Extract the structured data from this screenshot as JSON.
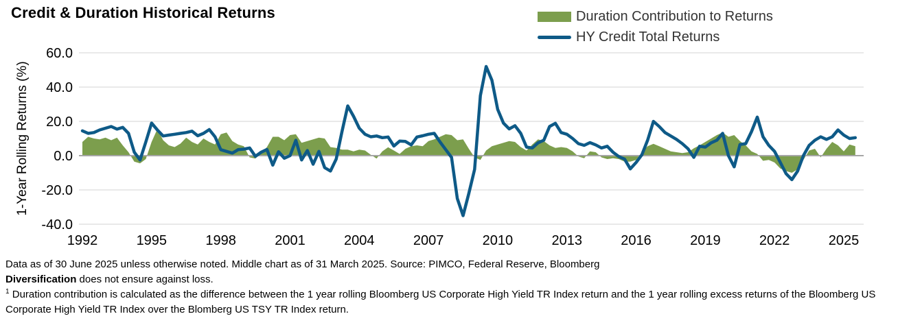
{
  "chart_data": {
    "type": "combo",
    "title": "Credit & Duration Historical Returns",
    "ylabel": "1-Year Rolling Returns (%)",
    "x_ticks": [
      1992,
      1995,
      1998,
      2001,
      2004,
      2007,
      2010,
      2013,
      2016,
      2019,
      2022,
      2025
    ],
    "y_ticks": [
      60,
      40,
      20,
      0,
      -20,
      -40
    ],
    "y_tick_labels": [
      "60.0",
      "40.0",
      "20.0",
      "0.0",
      "-20.0",
      "-40.0"
    ],
    "ylim": [
      -40,
      60
    ],
    "xlim": [
      1991.85,
      2025.9
    ],
    "grid": "horizontal",
    "legend_position": "top-right",
    "x_unit": "year (quarterly samples)",
    "x": [
      1992,
      1992.25,
      1992.5,
      1992.75,
      1993,
      1993.25,
      1993.5,
      1993.75,
      1994,
      1994.25,
      1994.5,
      1994.75,
      1995,
      1995.25,
      1995.5,
      1995.75,
      1996,
      1996.25,
      1996.5,
      1996.75,
      1997,
      1997.25,
      1997.5,
      1997.75,
      1998,
      1998.25,
      1998.5,
      1998.75,
      1999,
      1999.25,
      1999.5,
      1999.75,
      2000,
      2000.25,
      2000.5,
      2000.75,
      2001,
      2001.25,
      2001.5,
      2001.75,
      2002,
      2002.25,
      2002.5,
      2002.75,
      2003,
      2003.25,
      2003.5,
      2003.75,
      2004,
      2004.25,
      2004.5,
      2004.75,
      2005,
      2005.25,
      2005.5,
      2005.75,
      2006,
      2006.25,
      2006.5,
      2006.75,
      2007,
      2007.25,
      2007.5,
      2007.75,
      2008,
      2008.25,
      2008.5,
      2008.75,
      2009,
      2009.25,
      2009.5,
      2009.75,
      2010,
      2010.25,
      2010.5,
      2010.75,
      2011,
      2011.25,
      2011.5,
      2011.75,
      2012,
      2012.25,
      2012.5,
      2012.75,
      2013,
      2013.25,
      2013.5,
      2013.75,
      2014,
      2014.25,
      2014.5,
      2014.75,
      2015,
      2015.25,
      2015.5,
      2015.75,
      2016,
      2016.25,
      2016.5,
      2016.75,
      2017,
      2017.25,
      2017.5,
      2017.75,
      2018,
      2018.25,
      2018.5,
      2018.75,
      2019,
      2019.25,
      2019.5,
      2019.75,
      2020,
      2020.25,
      2020.5,
      2020.75,
      2021,
      2021.25,
      2021.5,
      2021.75,
      2022,
      2022.25,
      2022.5,
      2022.75,
      2023,
      2023.25,
      2023.5,
      2023.75,
      2024,
      2024.25,
      2024.5,
      2024.75,
      2025,
      2025.25,
      2025.5
    ],
    "series": [
      {
        "name": "Duration Contribution to Returns",
        "type": "area",
        "color": "#7C9E4D",
        "values": [
          8,
          11,
          10,
          9.5,
          10.5,
          9,
          10.5,
          6,
          2,
          -3.5,
          -4.5,
          -2,
          8,
          15.5,
          9,
          6,
          5,
          7,
          10.5,
          8,
          6.5,
          10,
          8,
          6.5,
          12.5,
          13.5,
          8.5,
          6.5,
          5.5,
          -1,
          -1.7,
          1.5,
          5,
          11,
          11,
          9,
          12,
          12.5,
          7.5,
          8.5,
          9.5,
          10.5,
          10,
          5,
          4.5,
          3.5,
          3.5,
          2.5,
          3.5,
          3,
          0.5,
          -1.7,
          2.5,
          4.9,
          3,
          1,
          4,
          5.5,
          6,
          5.5,
          8.5,
          9.5,
          11,
          12.5,
          12,
          9,
          9.5,
          4,
          -1,
          -2.5,
          3,
          5.5,
          6.5,
          7.5,
          8.5,
          8,
          5,
          3,
          6.5,
          9.5,
          8.5,
          6,
          4.5,
          5,
          4.5,
          2.5,
          -0.5,
          -1.5,
          2.5,
          2,
          -1,
          -2,
          -1.5,
          -2,
          -3.5,
          -3.5,
          -2.5,
          2,
          5.5,
          6.9,
          5.5,
          4,
          2.5,
          2,
          1.5,
          2,
          4.3,
          6,
          8,
          10,
          12,
          13.5,
          11,
          12,
          8.5,
          6,
          2.5,
          1,
          -3,
          -2.5,
          -4,
          -7.5,
          -9,
          -10,
          -8,
          -2.5,
          3,
          4,
          -1,
          4,
          8,
          6,
          2.5,
          6.5,
          5.5
        ]
      },
      {
        "name": "HY Credit Total Returns",
        "type": "line",
        "color": "#0E5A87",
        "values": [
          14.5,
          13,
          13.5,
          15,
          16,
          17,
          15.5,
          16.5,
          13,
          2,
          -2.5,
          8,
          19,
          15,
          11.5,
          12,
          12.5,
          13,
          13.5,
          14.3,
          11.6,
          13,
          15.2,
          11,
          3.5,
          2.5,
          1.5,
          3.5,
          3.8,
          4.5,
          -0.4,
          2,
          3.6,
          -5.5,
          2.3,
          -1.5,
          0,
          9,
          -2.5,
          3,
          -5,
          2.5,
          -7,
          -9,
          -2,
          14,
          29,
          23,
          16,
          12.5,
          11,
          11.5,
          10.5,
          10.9,
          5.6,
          8.5,
          8.3,
          6.3,
          10.9,
          11.6,
          12.5,
          13,
          8,
          3.5,
          -1,
          -25,
          -35,
          -22,
          -8,
          35,
          52,
          44,
          27,
          19,
          15.6,
          17.5,
          13,
          5,
          4.5,
          7.5,
          9,
          17,
          18.9,
          13.5,
          12.5,
          10,
          7,
          6,
          7.6,
          6.3,
          4.5,
          5.5,
          2,
          -0.5,
          -2,
          -7.7,
          -4,
          0.5,
          9,
          20,
          17,
          13.5,
          11.5,
          9.5,
          7,
          4,
          -1,
          5.5,
          5,
          7.5,
          9,
          13,
          0,
          -6.5,
          6.5,
          7,
          14,
          22.5,
          11,
          6,
          2.5,
          -4,
          -10.5,
          -14,
          -9,
          0,
          6,
          9,
          11,
          9.5,
          11,
          15,
          12,
          10,
          10.5
        ]
      }
    ],
    "colors": {
      "gridline": "#dcdcdc",
      "zero_line": "#a6a6a6",
      "area_green": "#7C9E4D",
      "line_blue": "#0E5A87"
    }
  },
  "footer": {
    "line1": "Data as of 30 June 2025 unless otherwise noted. Middle chart as of 31 March 2025. Source: PIMCO, Federal Reserve, Bloomberg",
    "line2_bold": "Diversification",
    "line2_rest": " does not ensure against loss.",
    "footnote_marker": "1",
    "footnote_text": " Duration contribution is calculated as the difference between the 1 year rolling Bloomberg US Corporate High Yield TR Index return and the 1 year rolling excess returns of the Bloomberg US Corporate High Yield TR Index over the Blomberg US TSY TR Index return."
  }
}
